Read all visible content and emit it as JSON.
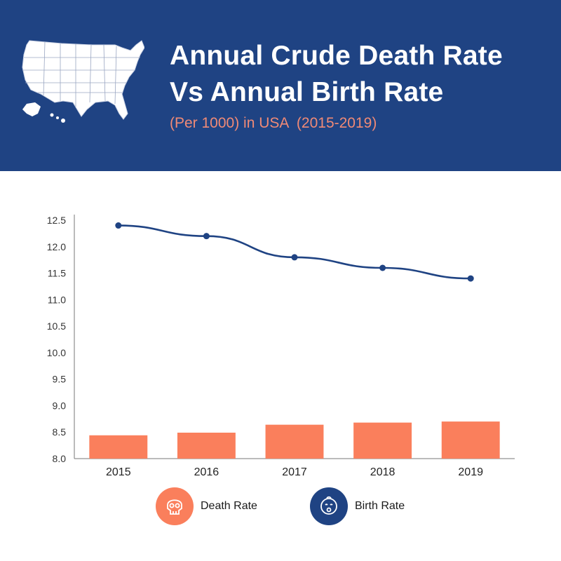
{
  "header": {
    "title_line1": "Annual Crude Death Rate",
    "title_line2": "Vs Annual Birth Rate",
    "subtitle": "(Per 1000) in USA  (2015-2019)",
    "map_icon": "usa-map-icon"
  },
  "colors": {
    "header_bg": "#1f4383",
    "death_rate": "#fa7f5c",
    "birth_rate": "#1f4383",
    "subtitle": "#f08a76"
  },
  "legend": [
    {
      "label": "Death Rate",
      "icon": "skull-icon"
    },
    {
      "label": "Birth Rate",
      "icon": "baby-icon"
    }
  ],
  "chart_data": {
    "type": "bar+line",
    "categories": [
      "2015",
      "2016",
      "2017",
      "2018",
      "2019"
    ],
    "series": [
      {
        "name": "Death Rate",
        "type": "bar",
        "values": [
          8.44,
          8.49,
          8.64,
          8.68,
          8.7
        ]
      },
      {
        "name": "Birth Rate",
        "type": "line",
        "values": [
          12.4,
          12.2,
          11.8,
          11.6,
          11.4
        ]
      }
    ],
    "y_ticks": [
      "8.0",
      "8.5",
      "9.0",
      "9.5",
      "10.0",
      "10.5",
      "11.0",
      "11.5",
      "12.0",
      "12.5"
    ],
    "ylim": [
      8.0,
      12.5
    ],
    "grid": false
  }
}
